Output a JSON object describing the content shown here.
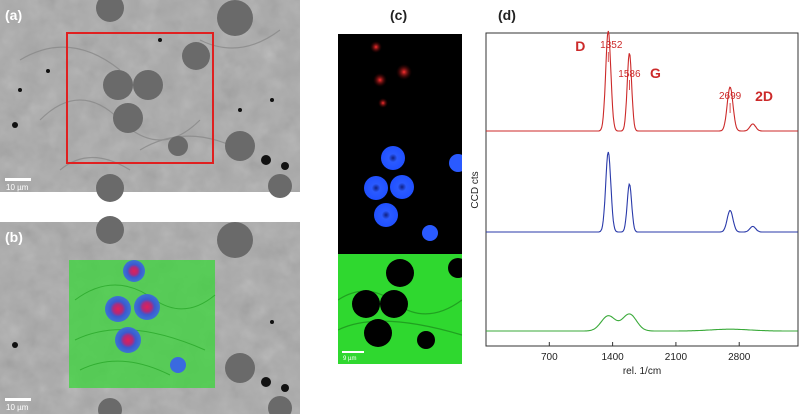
{
  "panels": {
    "a": {
      "label": "(a)",
      "scale_bar": "10 µm"
    },
    "b": {
      "label": "(b)",
      "scale_bar": "10 µm"
    },
    "c": {
      "label": "(c)",
      "scale_bar": "9 µm"
    },
    "d": {
      "label": "(d)"
    }
  },
  "chart_data": {
    "type": "line",
    "xlabel": "rel. 1/cm",
    "ylabel": "CCD cts",
    "xticks": [
      700,
      1400,
      2100,
      2800
    ],
    "xlim": [
      0,
      3450
    ],
    "grid": false,
    "annotations": [
      {
        "text": "D",
        "x": 1352,
        "series": "red"
      },
      {
        "text": "1352",
        "x": 1352,
        "series": "red"
      },
      {
        "text": "1586",
        "x": 1586,
        "series": "red"
      },
      {
        "text": "G",
        "x": 1586,
        "series": "red"
      },
      {
        "text": "2699",
        "x": 2699,
        "series": "red"
      },
      {
        "text": "2D",
        "x": 2699,
        "series": "red"
      }
    ],
    "series": [
      {
        "color": "#cc2a2a",
        "peaks": [
          {
            "x": 1352,
            "h": 1.0
          },
          {
            "x": 1586,
            "h": 0.78
          },
          {
            "x": 2699,
            "h": 0.44
          },
          {
            "x": 2950,
            "h": 0.07
          }
        ]
      },
      {
        "color": "#2a3aaa",
        "peaks": [
          {
            "x": 1352,
            "h": 1.0
          },
          {
            "x": 1586,
            "h": 0.6
          },
          {
            "x": 2699,
            "h": 0.27
          },
          {
            "x": 2950,
            "h": 0.07
          }
        ]
      },
      {
        "color": "#3aaa3a",
        "peaks": [
          {
            "x": 1352,
            "h": 0.42
          },
          {
            "x": 1586,
            "h": 0.47
          },
          {
            "x": 2699,
            "h": 0.05
          }
        ]
      }
    ],
    "colors": {
      "red": "#cc2a2a",
      "blue": "#2a3aaa",
      "green": "#3aaa3a"
    }
  }
}
